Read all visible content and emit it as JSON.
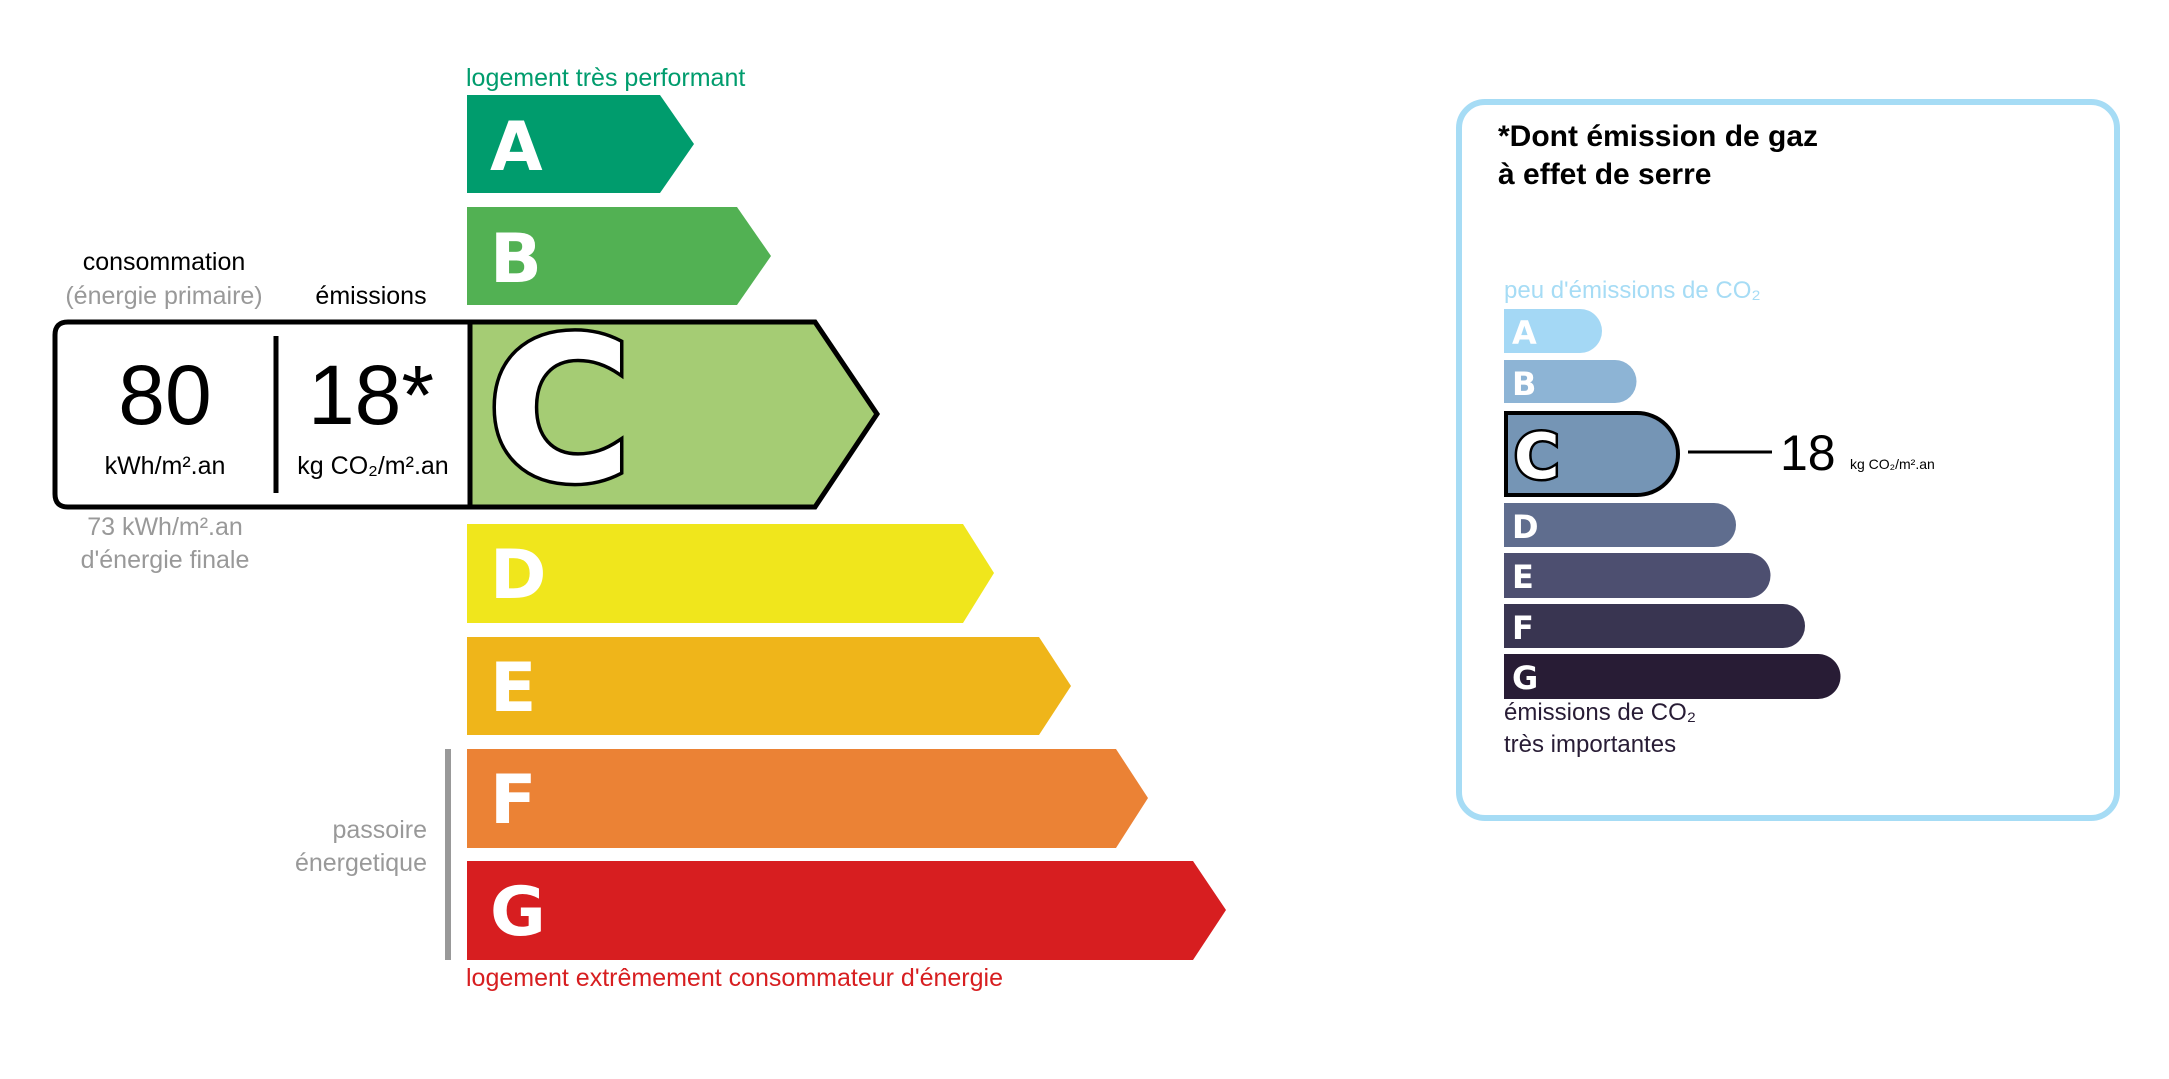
{
  "energy_label": {
    "top_label": "logement très performant",
    "bottom_label": "logement extrêmement consommateur d'énergie",
    "passoire_line1": "passoire",
    "passoire_line2": "énergetique",
    "classes": [
      {
        "letter": "A",
        "color": "#009c6d"
      },
      {
        "letter": "B",
        "color": "#52b153"
      },
      {
        "letter": "C",
        "color": "#a5cc74"
      },
      {
        "letter": "D",
        "color": "#f0e61c"
      },
      {
        "letter": "E",
        "color": "#efb51a"
      },
      {
        "letter": "F",
        "color": "#eb8235"
      },
      {
        "letter": "G",
        "color": "#d71e20"
      }
    ],
    "current_class": "C",
    "consumption_title": "consommation",
    "consumption_subtitle": "(énergie primaire)",
    "emissions_title": "émissions",
    "consumption_value": "80",
    "consumption_unit": "kWh/m².an",
    "emissions_value": "18*",
    "emissions_unit": "kg CO₂/m².an",
    "final_energy_line1": "73 kWh/m².an",
    "final_energy_line2": "d'énergie finale",
    "top_color": "#009c6d",
    "bottom_color": "#d71e20"
  },
  "ges_panel": {
    "title_line1": "*Dont émission de gaz",
    "title_line2": "à effet de serre",
    "top_label": "peu d'émissions de CO₂",
    "bottom_line1": "émissions de CO₂",
    "bottom_line2": "très importantes",
    "classes": [
      {
        "letter": "A",
        "color": "#a4d8f5"
      },
      {
        "letter": "B",
        "color": "#8db4d5"
      },
      {
        "letter": "C",
        "color": "#7595b5"
      },
      {
        "letter": "D",
        "color": "#5f6d8e"
      },
      {
        "letter": "E",
        "color": "#4d4f70"
      },
      {
        "letter": "F",
        "color": "#393551"
      },
      {
        "letter": "G",
        "color": "#281c35"
      }
    ],
    "current_class": "C",
    "value": "18",
    "unit": "kg CO₂/m².an",
    "border_color": "#a6dcf5"
  }
}
